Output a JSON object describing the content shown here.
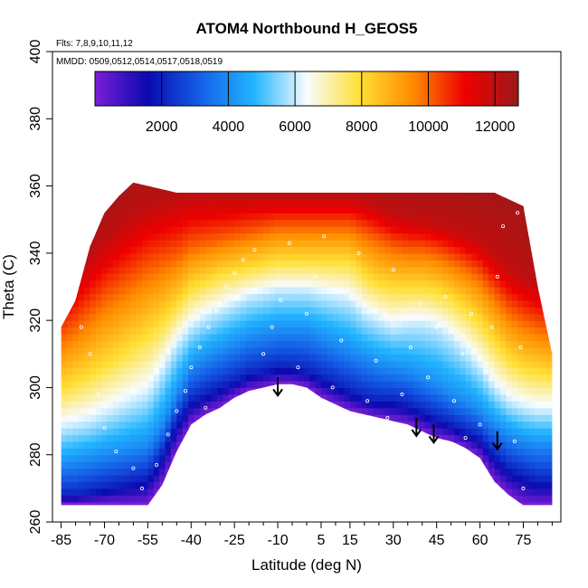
{
  "chart_data": {
    "type": "heatmap",
    "title": "ATOM4 Northbound H_GEOS5",
    "annotations": {
      "flights": "Flts: 7,8,9,10,11,12",
      "dates": "MMDD: 0509,0512,0514,0517,0518,0519"
    },
    "xlabel": "Latitude (deg N)",
    "ylabel": "Theta (C)",
    "xlim": [
      -88,
      88
    ],
    "ylim": [
      260,
      400
    ],
    "x_ticks": [
      -85,
      -70,
      -55,
      -40,
      -25,
      -10,
      5,
      15,
      30,
      45,
      60,
      75
    ],
    "x_tick_labels": [
      "-85",
      "-70",
      "-55",
      "-40",
      "-25",
      "-10",
      "5",
      "15",
      "30",
      "45",
      "60",
      "75"
    ],
    "y_ticks": [
      260,
      280,
      300,
      320,
      340,
      360,
      380,
      400
    ],
    "y_tick_labels": [
      "260",
      "280",
      "300",
      "320",
      "340",
      "360",
      "380",
      "400"
    ],
    "colorbar": {
      "min": 0,
      "max": 12700,
      "ticks": [
        2000,
        4000,
        6000,
        8000,
        10000,
        12000
      ],
      "tick_labels": [
        "2000",
        "4000",
        "6000",
        "8000",
        "10000",
        "12000"
      ],
      "colors": [
        "#7b1fd6",
        "#0a0ab0",
        "#1560e8",
        "#22b4ff",
        "#f8fcff",
        "#ffe035",
        "#ff8c00",
        "#ee0000",
        "#9a1a1a"
      ]
    },
    "value_meaning": "altitude along isentropic surfaces (m)",
    "lat_profile": {
      "lat": [
        -85,
        -80,
        -75,
        -70,
        -65,
        -60,
        -55,
        -50,
        -45,
        -40,
        -35,
        -30,
        -25,
        -20,
        -15,
        -10,
        -5,
        0,
        5,
        10,
        15,
        20,
        25,
        30,
        35,
        40,
        45,
        50,
        55,
        60,
        65,
        70,
        75,
        80,
        85
      ],
      "bottom_theta": [
        265,
        265,
        265,
        265,
        265,
        265,
        265,
        271,
        281,
        289,
        292,
        294,
        297,
        299,
        300,
        301,
        301,
        300,
        297,
        295,
        293,
        292,
        291,
        290,
        289,
        287,
        285,
        284,
        282,
        279,
        272,
        268,
        265,
        265,
        265
      ],
      "top_theta": [
        318,
        326,
        342,
        352,
        357,
        361,
        360,
        359,
        358,
        358,
        358,
        358,
        358,
        358,
        358,
        358,
        358,
        358,
        358,
        358,
        358,
        358,
        358,
        358,
        358,
        358,
        358,
        358,
        358,
        358,
        358,
        356,
        354,
        330,
        310
      ],
      "iso_2000m_theta": [
        268,
        268,
        269,
        270,
        271,
        272,
        273,
        280,
        290,
        296,
        298,
        300,
        302,
        304,
        305,
        306,
        306,
        305,
        303,
        301,
        299,
        297,
        296,
        296,
        295,
        293,
        291,
        289,
        287,
        285,
        280,
        276,
        274,
        272,
        272
      ],
      "iso_4000m_theta": [
        277,
        278,
        279,
        280,
        281,
        282,
        283,
        289,
        298,
        306,
        309,
        311,
        313,
        315,
        316,
        317,
        317,
        317,
        315,
        313,
        311,
        309,
        307,
        306,
        305,
        303,
        301,
        298,
        296,
        293,
        289,
        286,
        284,
        283,
        283
      ],
      "iso_6000m_theta": [
        288,
        289,
        290,
        292,
        294,
        296,
        298,
        305,
        313,
        318,
        321,
        323,
        325,
        327,
        328,
        329,
        329,
        329,
        328,
        327,
        326,
        322,
        320,
        318,
        319,
        319,
        318,
        315,
        311,
        306,
        300,
        296,
        294,
        293,
        293
      ],
      "iso_8000m_theta": [
        300,
        302,
        304,
        307,
        310,
        313,
        316,
        320,
        325,
        330,
        332,
        334,
        335,
        336,
        337,
        338,
        338,
        338,
        338,
        338,
        338,
        334,
        331,
        330,
        330,
        330,
        329,
        327,
        324,
        320,
        314,
        309,
        306,
        305,
        304
      ],
      "iso_10000m_theta": [
        315,
        318,
        322,
        326,
        329,
        332,
        335,
        337,
        339,
        342,
        343,
        344,
        345,
        346,
        347,
        348,
        348,
        348,
        348,
        348,
        348,
        346,
        344,
        342,
        341,
        341,
        340,
        338,
        336,
        333,
        328,
        323,
        320,
        318,
        317
      ],
      "iso_12000m_theta": [
        330,
        334,
        339,
        344,
        348,
        351,
        354,
        355,
        356,
        357,
        357,
        357,
        357,
        357,
        357,
        357,
        357,
        357,
        357,
        357,
        357,
        356,
        354,
        352,
        351,
        350,
        349,
        348,
        346,
        344,
        340,
        336,
        333,
        331,
        330
      ]
    },
    "arrows": [
      {
        "lat": -10,
        "theta": 303
      },
      {
        "lat": 38,
        "theta": 291
      },
      {
        "lat": 44,
        "theta": 289
      },
      {
        "lat": 66,
        "theta": 287
      }
    ],
    "sample_points": [
      {
        "lat": -82,
        "theta": 325
      },
      {
        "lat": -78,
        "theta": 318
      },
      {
        "lat": -75,
        "theta": 310
      },
      {
        "lat": -72,
        "theta": 298
      },
      {
        "lat": -70,
        "theta": 288
      },
      {
        "lat": -66,
        "theta": 281
      },
      {
        "lat": -60,
        "theta": 276
      },
      {
        "lat": -57,
        "theta": 270
      },
      {
        "lat": -52,
        "theta": 277
      },
      {
        "lat": -48,
        "theta": 286
      },
      {
        "lat": -45,
        "theta": 293
      },
      {
        "lat": -42,
        "theta": 299
      },
      {
        "lat": -40,
        "theta": 306
      },
      {
        "lat": -37,
        "theta": 312
      },
      {
        "lat": -34,
        "theta": 318
      },
      {
        "lat": -31,
        "theta": 323
      },
      {
        "lat": -28,
        "theta": 330
      },
      {
        "lat": -25,
        "theta": 334
      },
      {
        "lat": -22,
        "theta": 338
      },
      {
        "lat": -18,
        "theta": 341
      },
      {
        "lat": -15,
        "theta": 310
      },
      {
        "lat": -12,
        "theta": 318
      },
      {
        "lat": -9,
        "theta": 326
      },
      {
        "lat": -6,
        "theta": 343
      },
      {
        "lat": -3,
        "theta": 306
      },
      {
        "lat": 0,
        "theta": 322
      },
      {
        "lat": 3,
        "theta": 333
      },
      {
        "lat": 6,
        "theta": 345
      },
      {
        "lat": 9,
        "theta": 300
      },
      {
        "lat": 12,
        "theta": 314
      },
      {
        "lat": 15,
        "theta": 327
      },
      {
        "lat": 18,
        "theta": 340
      },
      {
        "lat": 21,
        "theta": 296
      },
      {
        "lat": 24,
        "theta": 308
      },
      {
        "lat": 27,
        "theta": 322
      },
      {
        "lat": 30,
        "theta": 335
      },
      {
        "lat": 33,
        "theta": 298
      },
      {
        "lat": 36,
        "theta": 312
      },
      {
        "lat": 39,
        "theta": 325
      },
      {
        "lat": 42,
        "theta": 303
      },
      {
        "lat": 45,
        "theta": 318
      },
      {
        "lat": 48,
        "theta": 327
      },
      {
        "lat": 51,
        "theta": 296
      },
      {
        "lat": 54,
        "theta": 310
      },
      {
        "lat": 57,
        "theta": 322
      },
      {
        "lat": 60,
        "theta": 289
      },
      {
        "lat": 62,
        "theta": 305
      },
      {
        "lat": 64,
        "theta": 318
      },
      {
        "lat": 66,
        "theta": 333
      },
      {
        "lat": 68,
        "theta": 348
      },
      {
        "lat": 70,
        "theta": 298
      },
      {
        "lat": 72,
        "theta": 284
      },
      {
        "lat": 74,
        "theta": 312
      },
      {
        "lat": 75,
        "theta": 270
      },
      {
        "lat": 73,
        "theta": 352
      },
      {
        "lat": -20,
        "theta": 295
      },
      {
        "lat": 0,
        "theta": 299
      },
      {
        "lat": 28,
        "theta": 291
      },
      {
        "lat": 55,
        "theta": 285
      },
      {
        "lat": -35,
        "theta": 294
      }
    ]
  }
}
